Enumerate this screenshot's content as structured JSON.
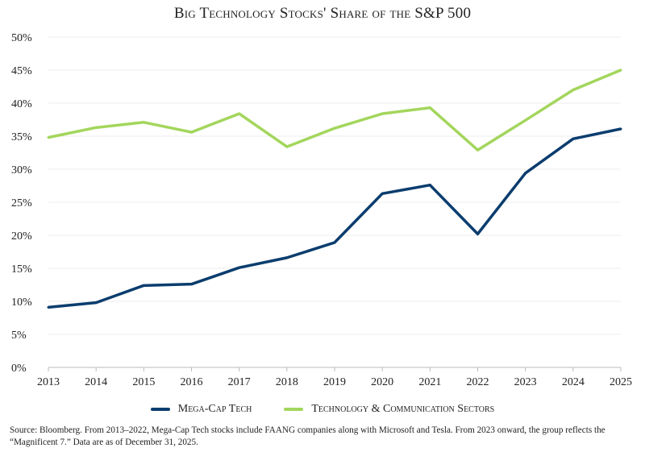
{
  "chart_data": {
    "type": "line",
    "title": "Big Technology Stocks' Share of the S&P 500",
    "x": [
      2013,
      2014,
      2015,
      2016,
      2017,
      2018,
      2019,
      2020,
      2021,
      2022,
      2023,
      2024,
      2025
    ],
    "xlabel": "",
    "ylabel": "",
    "ylim": [
      0,
      50
    ],
    "yticks": [
      "0%",
      "5%",
      "10%",
      "15%",
      "20%",
      "25%",
      "30%",
      "35%",
      "40%",
      "45%",
      "50%"
    ],
    "grid": true,
    "legend_position": "bottom",
    "series": [
      {
        "name": "Mega-Cap Tech",
        "color": "#0b3d6e",
        "values": [
          9.1,
          9.8,
          12.4,
          12.6,
          15.1,
          16.6,
          18.9,
          26.3,
          27.6,
          20.2,
          29.4,
          34.6,
          36.1
        ]
      },
      {
        "name": "Technology & Communication Sectors",
        "color": "#a3d65c",
        "values": [
          34.8,
          36.3,
          37.1,
          35.6,
          38.4,
          33.4,
          36.2,
          38.4,
          39.3,
          32.9,
          37.4,
          42.0,
          45.0
        ]
      }
    ]
  },
  "source": "Source: Bloomberg. From 2013–2022, Mega-Cap Tech stocks include FAANG companies along with Microsoft and Tesla. From 2023 onward, the group reflects the “Magnificent 7.” Data are as of December 31, 2025."
}
